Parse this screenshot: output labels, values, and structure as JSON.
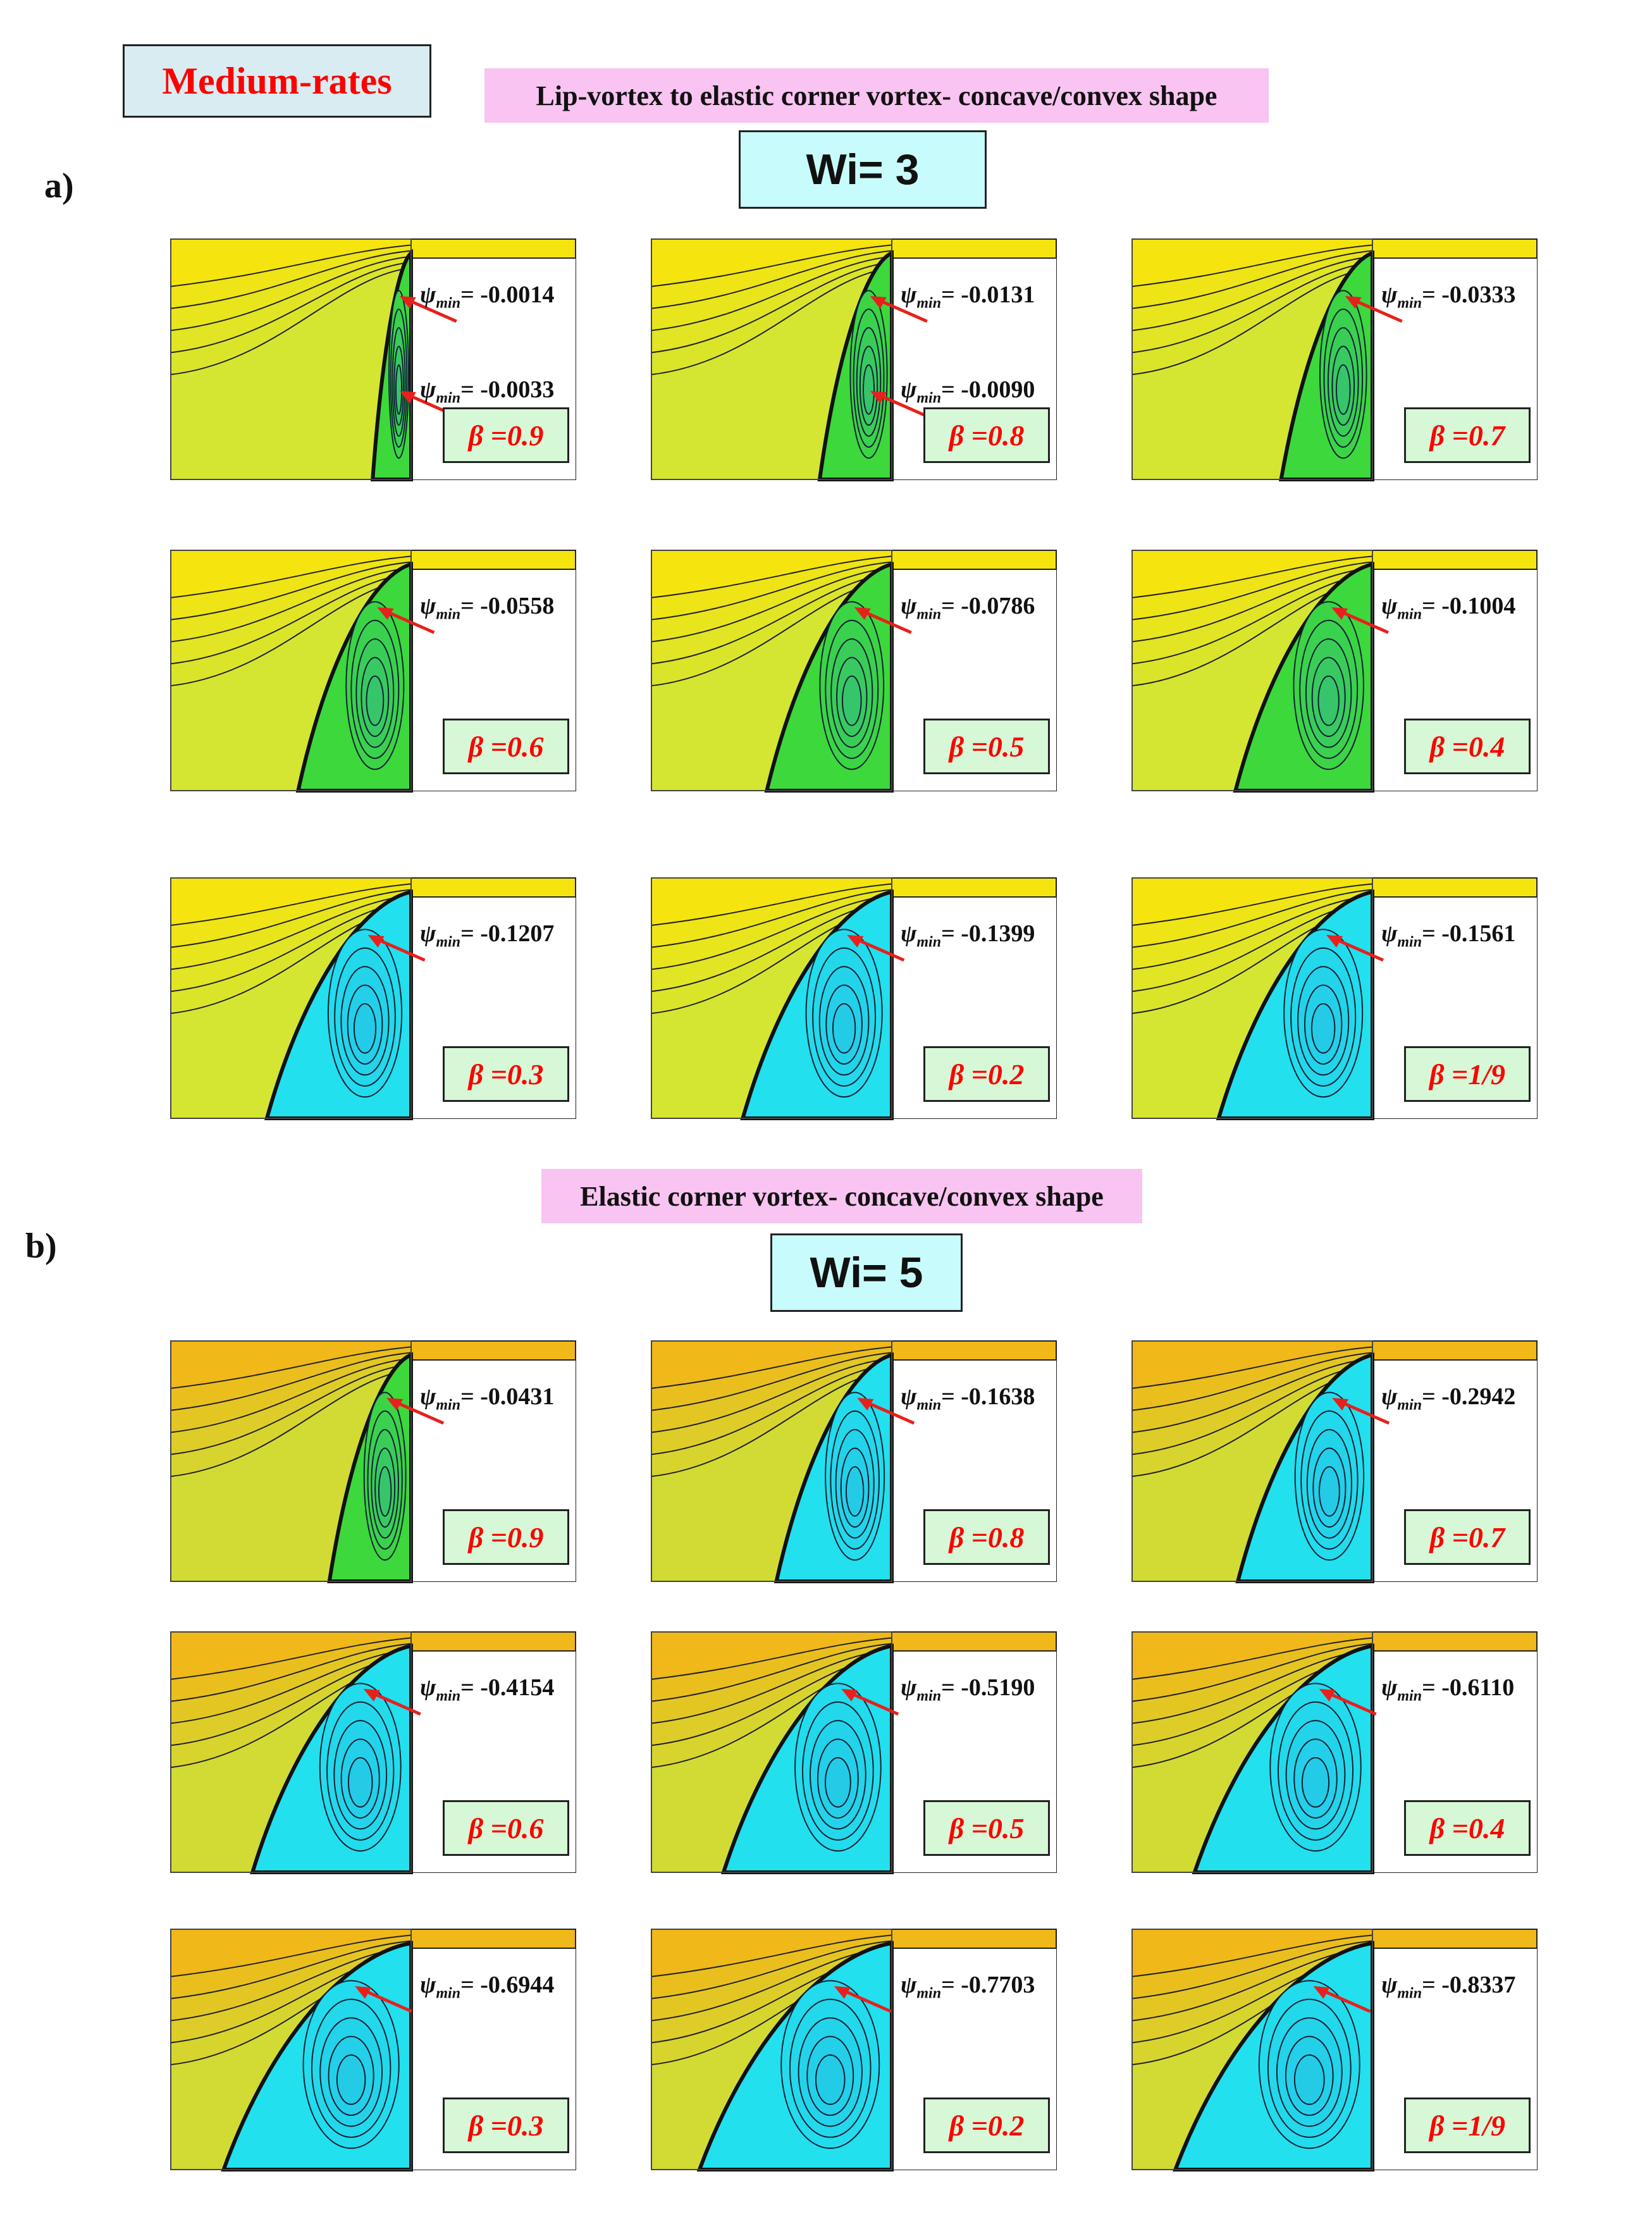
{
  "header": {
    "rate_label": "Medium-rates",
    "banner_a": "Lip-vortex to elastic corner vortex- concave/convex shape",
    "banner_b": "Elastic corner vortex- concave/convex shape",
    "section_a": "a)",
    "section_b": "b)",
    "wi_a": "Wi= 3",
    "wi_b": "Wi= 5"
  },
  "psi_prefix": "ψ",
  "psi_subscript": "min",
  "colors": {
    "upstream": "#f6e40e",
    "upstream_dark": "#f0b818",
    "vortex_green": "#3cd83c",
    "vortex_cyan": "#22e0ee",
    "arrow": "#e8201c"
  },
  "sections": [
    {
      "id": "a",
      "panels": [
        {
          "beta": "β =0.9",
          "psi": [
            "= -0.0014",
            "= -0.0033"
          ],
          "vortex": "green",
          "width_frac": 0.16
        },
        {
          "beta": "β =0.8",
          "psi": [
            "= -0.0131",
            "= -0.0090"
          ],
          "vortex": "green",
          "width_frac": 0.3
        },
        {
          "beta": "β =0.7",
          "psi": [
            "= -0.0333"
          ],
          "vortex": "green",
          "width_frac": 0.38
        },
        {
          "beta": "β =0.6",
          "psi": [
            "= -0.0558"
          ],
          "vortex": "green",
          "width_frac": 0.47
        },
        {
          "beta": "β =0.5",
          "psi": [
            "= -0.0786"
          ],
          "vortex": "green",
          "width_frac": 0.52
        },
        {
          "beta": "β =0.4",
          "psi": [
            "= -0.1004"
          ],
          "vortex": "green",
          "width_frac": 0.57
        },
        {
          "beta": "β =0.3",
          "psi": [
            "= -0.1207"
          ],
          "vortex": "cyan",
          "width_frac": 0.6
        },
        {
          "beta": "β =0.2",
          "psi": [
            "= -0.1399"
          ],
          "vortex": "cyan",
          "width_frac": 0.62
        },
        {
          "beta": "β =1/9",
          "psi": [
            "= -0.1561"
          ],
          "vortex": "cyan",
          "width_frac": 0.64
        }
      ]
    },
    {
      "id": "b",
      "panels": [
        {
          "beta": "β =0.9",
          "psi": [
            "= -0.0431"
          ],
          "vortex": "green",
          "width_frac": 0.34
        },
        {
          "beta": "β =0.8",
          "psi": [
            "= -0.1638"
          ],
          "vortex": "cyan",
          "width_frac": 0.48
        },
        {
          "beta": "β =0.7",
          "psi": [
            "= -0.2942"
          ],
          "vortex": "cyan",
          "width_frac": 0.56
        },
        {
          "beta": "β =0.6",
          "psi": [
            "= -0.4154"
          ],
          "vortex": "cyan",
          "width_frac": 0.66
        },
        {
          "beta": "β =0.5",
          "psi": [
            "= -0.5190"
          ],
          "vortex": "cyan",
          "width_frac": 0.7
        },
        {
          "beta": "β =0.4",
          "psi": [
            "= -0.6110"
          ],
          "vortex": "cyan",
          "width_frac": 0.74
        },
        {
          "beta": "β =0.3",
          "psi": [
            "= -0.6944"
          ],
          "vortex": "cyan",
          "width_frac": 0.78
        },
        {
          "beta": "β =0.2",
          "psi": [
            "= -0.7703"
          ],
          "vortex": "cyan",
          "width_frac": 0.8
        },
        {
          "beta": "β =1/9",
          "psi": [
            "= -0.8337"
          ],
          "vortex": "cyan",
          "width_frac": 0.82
        }
      ]
    }
  ]
}
